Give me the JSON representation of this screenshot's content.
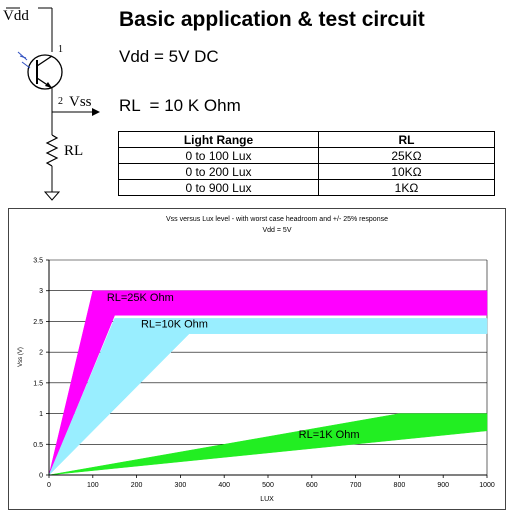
{
  "schematic": {
    "vdd_label": "Vdd",
    "pin1": "1",
    "pin2": "2",
    "vss_label": "Vss",
    "rl_label": "RL"
  },
  "header": {
    "title": "Basic application & test circuit",
    "vdd_line": "Vdd = 5V DC",
    "rl_line": "RL  = 10 K Ohm"
  },
  "table": {
    "headers": [
      "Light Range",
      "RL"
    ],
    "rows": [
      [
        "0 to 100 Lux",
        "25KΩ"
      ],
      [
        "0 to 200 Lux",
        "10KΩ"
      ],
      [
        "0 to 900 Lux",
        "1KΩ"
      ]
    ]
  },
  "chart_data": {
    "type": "area",
    "title": "Vss versus Lux level - with worst case headroom and  +/- 25% response",
    "subtitle": "Vdd = 5V",
    "xlabel": "LUX",
    "ylabel": "Vss (V)",
    "xlim": [
      0,
      1000
    ],
    "ylim": [
      0,
      3.5
    ],
    "xticks": [
      0,
      100,
      200,
      300,
      400,
      500,
      600,
      700,
      800,
      900,
      1000
    ],
    "yticks": [
      0,
      0.5,
      1,
      1.5,
      2,
      2.5,
      3,
      3.5
    ],
    "grid": "horizontal",
    "series": [
      {
        "name": "RL=25K Ohm",
        "color": "#ff00ff",
        "upper": [
          [
            0,
            0
          ],
          [
            100,
            3
          ],
          [
            1000,
            3
          ]
        ],
        "lower": [
          [
            0,
            0
          ],
          [
            150,
            2.6
          ],
          [
            1000,
            2.6
          ]
        ]
      },
      {
        "name": "RL=10K Ohm",
        "color": "#99eeff",
        "upper": [
          [
            0,
            0
          ],
          [
            150,
            2.55
          ],
          [
            1000,
            2.55
          ]
        ],
        "lower": [
          [
            0,
            0
          ],
          [
            320,
            2.3
          ],
          [
            1000,
            2.3
          ]
        ]
      },
      {
        "name": "RL=1K Ohm",
        "color": "#22ee22",
        "upper": [
          [
            0,
            0
          ],
          [
            800,
            1.0
          ],
          [
            1000,
            1.0
          ]
        ],
        "lower": [
          [
            0,
            0
          ],
          [
            1000,
            0.72
          ]
        ]
      }
    ]
  }
}
